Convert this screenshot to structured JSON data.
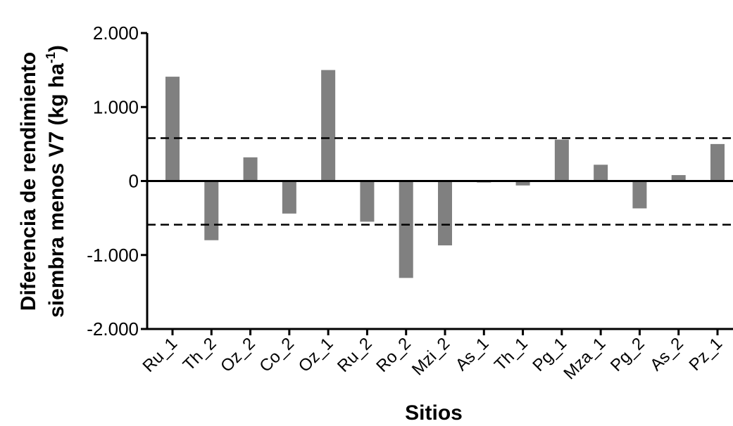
{
  "chart_data": {
    "type": "bar",
    "title": "",
    "xlabel": "Sitios",
    "ylabel_line1": "Diferencia de rendimiento",
    "ylabel_line2": "siembra menos V7 (kg ha",
    "ylabel_sup": "-1",
    "ylabel_end": ")",
    "ylim": [
      -2000,
      2000
    ],
    "yticks": [
      2000,
      1000,
      0,
      -1000,
      -2000
    ],
    "ytick_labels": [
      "2.000",
      "1.000",
      "0",
      "-1.000",
      "-2.000"
    ],
    "categories": [
      "Ru_1",
      "Th_2",
      "Oz_2",
      "Co_2",
      "Oz_1",
      "Ru_2",
      "Ro_2",
      "Mzi_2",
      "As_1",
      "Th_1",
      "Pg_1",
      "Mza_1",
      "Pg_2",
      "As_2",
      "Pz_1"
    ],
    "values": [
      1410,
      -800,
      320,
      -440,
      1500,
      -550,
      -1310,
      -870,
      -20,
      -60,
      560,
      220,
      -370,
      80,
      500
    ],
    "reference_lines": [
      580,
      -590
    ],
    "bar_color": "#808080",
    "grid": false,
    "legend": "none"
  }
}
